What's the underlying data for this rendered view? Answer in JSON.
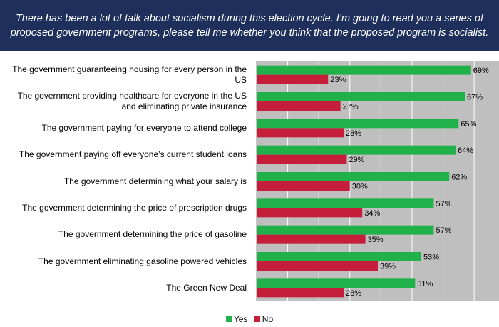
{
  "header": {
    "title": "There has been a lot of talk about socialism during this election cycle. I’m going to read you a series of proposed government programs, please tell me whether you think that the proposed program is socialist."
  },
  "colors": {
    "yes": "#21b14b",
    "no": "#c41e3a",
    "plot_bg": "#bfbfbf"
  },
  "chart_data": {
    "type": "bar",
    "orientation": "horizontal",
    "categories": [
      "The government guaranteeing housing for every person in the US",
      "The government providing healthcare for everyone in the US and eliminating private insurance",
      "The government paying for everyone to attend college",
      "The government paying off everyone’s current student loans",
      "The government determining what your salary is",
      "The government determining the price of prescription drugs",
      "The government determining the price of gasoline",
      "The government eliminating gasoline powered vehicles",
      "The Green New Deal"
    ],
    "series": [
      {
        "name": "Yes",
        "values": [
          69,
          67,
          65,
          64,
          62,
          57,
          57,
          53,
          51
        ],
        "labels": [
          "69%",
          "67%",
          "65%",
          "64%",
          "62%",
          "57%",
          "57%",
          "53%",
          "51%"
        ]
      },
      {
        "name": "No",
        "values": [
          23,
          27,
          28,
          29,
          30,
          34,
          35,
          39,
          28
        ],
        "labels": [
          "23%",
          "27%",
          "28%",
          "29%",
          "30%",
          "34%",
          "35%",
          "39%",
          "28%"
        ]
      }
    ],
    "xlim": [
      0,
      78
    ],
    "grid": true,
    "legend": "bottom"
  }
}
